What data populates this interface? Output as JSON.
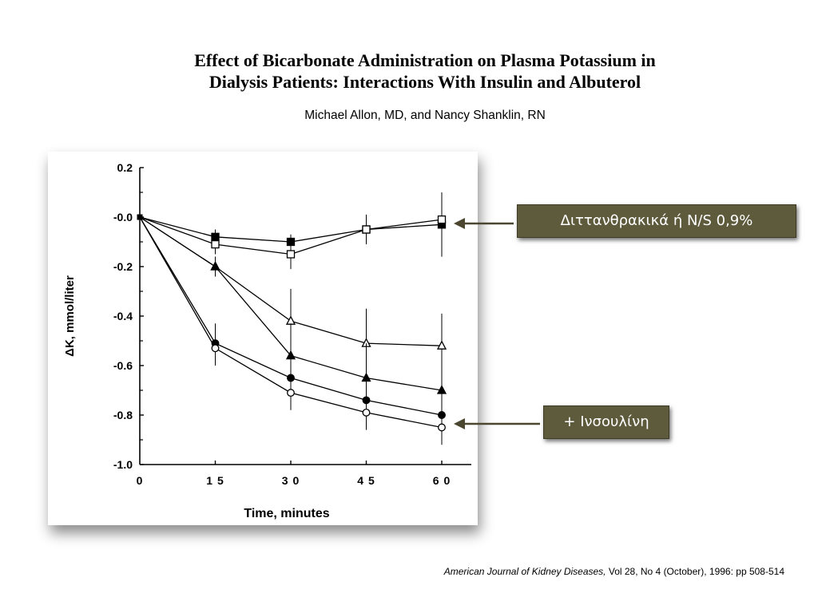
{
  "header": {
    "title_line1": "Effect of Bicarbonate Administration on Plasma Potassium in",
    "title_line2": "Dialysis Patients: Interactions With Insulin and Albuterol",
    "authors": "Michael Allon, MD, and Nancy Shanklin, RN"
  },
  "annotations": {
    "label1": "Διττανθρακικά ή N/S 0,9%",
    "label2": "+ Ινσουλίνη"
  },
  "citation": {
    "journal": "American Journal of Kidney Diseases,",
    "details": " Vol 28, No 4 (October), 1996: pp 508-514"
  },
  "colors": {
    "annotation_box": "#5e5a3c",
    "annotation_text": "#ffffff",
    "plot_ink": "#000000"
  },
  "chart_data": {
    "type": "line",
    "xlabel": "Time, minutes",
    "ylabel": "ΔK, mmol/liter",
    "x": [
      0,
      15,
      30,
      45,
      60
    ],
    "xticks": [
      "0",
      "1 5",
      "3 0",
      "4 5",
      "6 0"
    ],
    "yticks": [
      "0.2",
      "-0.0",
      "-0.2",
      "-0.4",
      "-0.6",
      "-0.8",
      "-1.0"
    ],
    "ylim": [
      -1.0,
      0.2
    ],
    "xlim": [
      0,
      60
    ],
    "grid": false,
    "series": [
      {
        "marker": "filled-square",
        "values": [
          0,
          -0.08,
          -0.1,
          -0.05,
          -0.03
        ],
        "err": [
          0,
          0.03,
          0.03,
          0.04,
          0.13
        ]
      },
      {
        "marker": "open-square",
        "values": [
          0,
          -0.11,
          -0.15,
          -0.05,
          -0.01
        ],
        "err": [
          0,
          0.04,
          0.06,
          0.06,
          0.1
        ]
      },
      {
        "marker": "open-triangle",
        "values": [
          0,
          -0.2,
          -0.42,
          -0.51,
          -0.52
        ],
        "err": [
          0,
          0.04,
          0.13,
          0.14,
          0.13
        ]
      },
      {
        "marker": "filled-triangle",
        "values": [
          0,
          -0.2,
          -0.56,
          -0.65,
          -0.7
        ],
        "err": [
          0,
          0.04,
          0.13,
          0.14,
          0.13
        ]
      },
      {
        "marker": "filled-circle",
        "values": [
          0,
          -0.51,
          -0.65,
          -0.74,
          -0.8
        ],
        "err": [
          0,
          0.08,
          0.07,
          0.07,
          0.08
        ]
      },
      {
        "marker": "open-circle",
        "values": [
          0,
          -0.53,
          -0.71,
          -0.79,
          -0.85
        ],
        "err": [
          0,
          0.07,
          0.07,
          0.07,
          0.07
        ]
      }
    ]
  }
}
